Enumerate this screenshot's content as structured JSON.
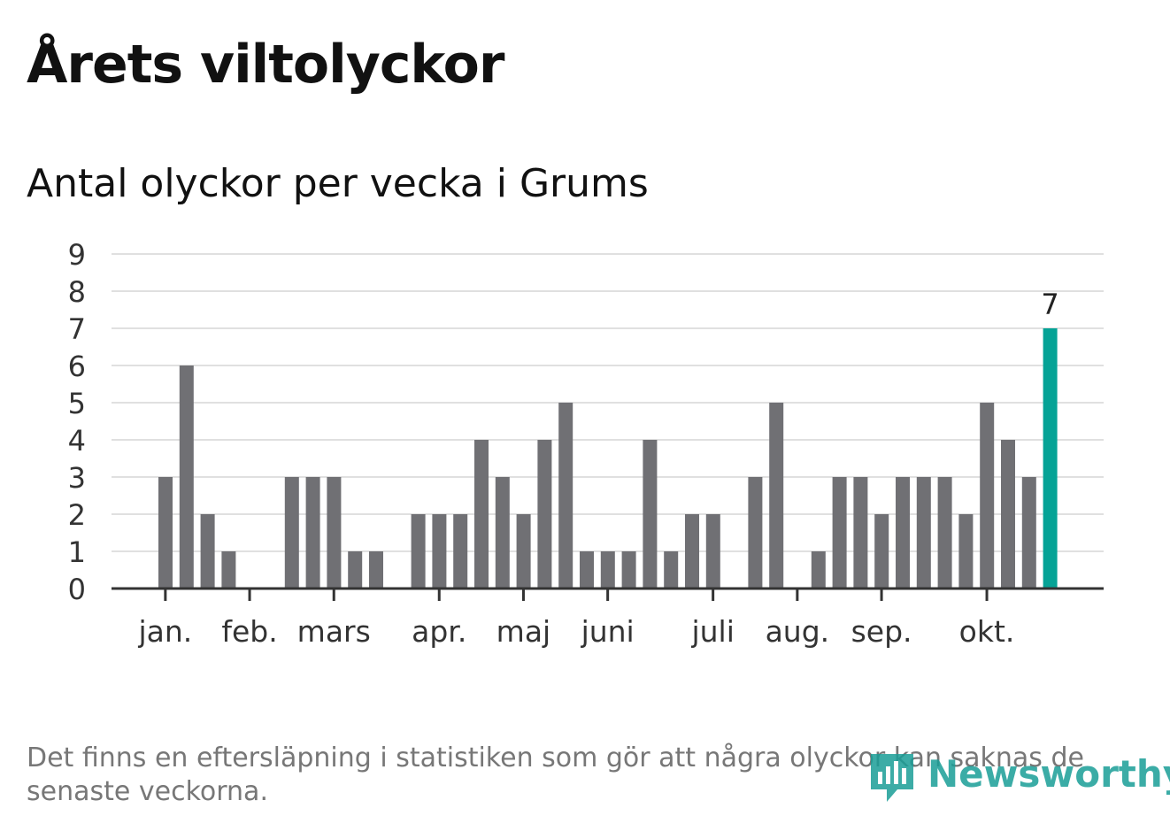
{
  "title": "Årets viltolyckor",
  "subtitle": "Antal olyckor per vecka i Grums",
  "footnote": "Det finns en eftersläpning i statistiken som gör att några olyckor kan saknas de senaste veckorna.",
  "logo": {
    "text": "Newsworthy",
    "icon": "newsworthy-bar-icon"
  },
  "colors": {
    "bar": "#707074",
    "highlight": "#05a396",
    "grid": "#e0e0e0",
    "axis": "#333333",
    "logo": "#1a9e97"
  },
  "chart_data": {
    "type": "bar",
    "x": [
      "1",
      "2",
      "3",
      "4",
      "5",
      "6",
      "7",
      "8",
      "9",
      "10",
      "11",
      "12",
      "13",
      "14",
      "15",
      "16",
      "17",
      "18",
      "19",
      "20",
      "21",
      "22",
      "23",
      "24",
      "25",
      "26",
      "27",
      "28",
      "29",
      "30",
      "31",
      "32",
      "33",
      "34",
      "35",
      "36",
      "37",
      "38",
      "39",
      "40",
      "41",
      "42",
      "43"
    ],
    "values": [
      3,
      6,
      2,
      1,
      0,
      0,
      3,
      3,
      3,
      1,
      1,
      0,
      2,
      2,
      2,
      4,
      3,
      2,
      4,
      5,
      1,
      1,
      1,
      4,
      1,
      2,
      2,
      0,
      3,
      5,
      0,
      1,
      3,
      3,
      2,
      3,
      3,
      3,
      2,
      5,
      4,
      3,
      7
    ],
    "highlight_index": 42,
    "highlight_label": "7",
    "ylim": [
      0,
      9
    ],
    "yticks": [
      "0",
      "1",
      "2",
      "3",
      "4",
      "5",
      "6",
      "7",
      "8",
      "9"
    ],
    "month_labels": [
      {
        "label": "jan.",
        "index": 0.33
      },
      {
        "label": "feb.",
        "index": 4.33
      },
      {
        "label": "mars",
        "index": 8.33
      },
      {
        "label": "apr.",
        "index": 13.33
      },
      {
        "label": "maj",
        "index": 17.33
      },
      {
        "label": "juni",
        "index": 21.33
      },
      {
        "label": "juli",
        "index": 26.33
      },
      {
        "label": "aug.",
        "index": 30.33
      },
      {
        "label": "sep.",
        "index": 34.33
      },
      {
        "label": "okt.",
        "index": 39.33
      }
    ],
    "grid": true,
    "legend": "none"
  }
}
